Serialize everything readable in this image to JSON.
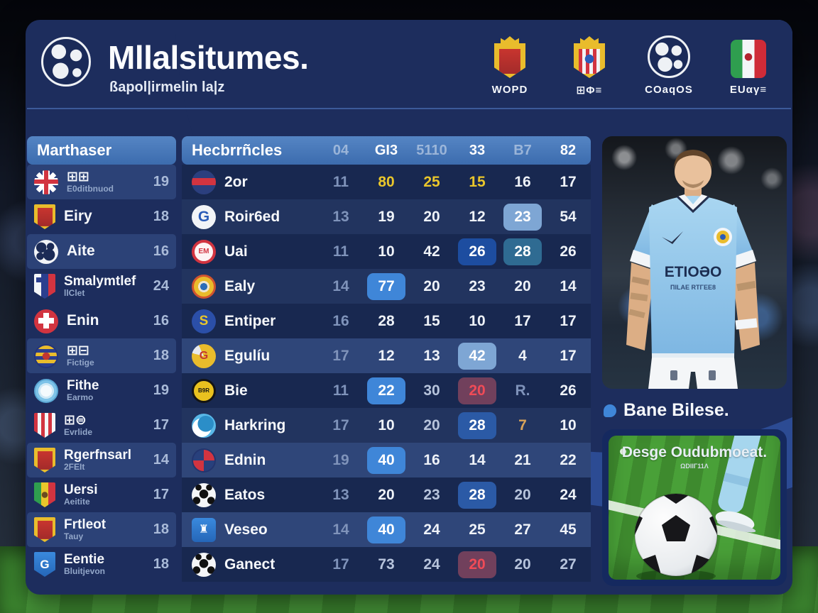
{
  "header": {
    "title": "Mllalsitumes.",
    "subtitle": "ßapol|irmelin la|z",
    "logo_icon": "globe-football-logo",
    "badges": [
      {
        "label": "WOPD",
        "icon": "crest-crown-red"
      },
      {
        "label": "⊞Φ≡",
        "icon": "crest-crown-stripes"
      },
      {
        "label": "COaqOS",
        "icon": "globe"
      },
      {
        "label": "EUαγ≡",
        "icon": "flag-tricolor"
      }
    ]
  },
  "sidebar": {
    "title": "Marthaser",
    "items": [
      {
        "name": "⊞⊞",
        "sub": "E0ditbnuod",
        "value": "19",
        "icon": "uk-flag",
        "hl": true
      },
      {
        "name": "Eiry",
        "sub": "",
        "value": "18",
        "icon": "crest-red-yellow",
        "hl": false
      },
      {
        "name": "Aite",
        "sub": "",
        "value": "16",
        "icon": "globe-ball",
        "hl": true
      },
      {
        "name": "Smalymtlef",
        "sub": "llClet",
        "value": "24",
        "icon": "shield-france",
        "hl": false
      },
      {
        "name": "Enin",
        "sub": "",
        "value": "16",
        "icon": "circle-red-cross",
        "hl": false
      },
      {
        "name": "⊞⊟",
        "sub": "Fictige",
        "value": "18",
        "icon": "circle-yellow-blue",
        "hl": true
      },
      {
        "name": "Fithe",
        "sub": "Earmo",
        "value": "19",
        "icon": "circle-light-blue",
        "hl": false
      },
      {
        "name": "⊞⊜",
        "sub": "Evrlide",
        "value": "17",
        "icon": "shield-red-white",
        "hl": false
      },
      {
        "name": "Rgerfnsarl",
        "sub": "2FEIt",
        "value": "14",
        "icon": "crest-red-yellow",
        "hl": true
      },
      {
        "name": "Uersi",
        "sub": "Aeitite",
        "value": "17",
        "icon": "shield-tricolor",
        "hl": false
      },
      {
        "name": "Frtleot",
        "sub": "Tauy",
        "value": "18",
        "icon": "crest-red-yellow",
        "hl": true
      },
      {
        "name": "Eentie",
        "sub": "Bluitjevon",
        "value": "18",
        "icon": "shield-blue-g",
        "hl": false
      }
    ]
  },
  "table": {
    "title": "Hecbrrñcles",
    "columns": [
      {
        "label": "04",
        "dim": true
      },
      {
        "label": "GI3",
        "dim": false
      },
      {
        "label": "5110",
        "dim": true
      },
      {
        "label": "33",
        "dim": false
      },
      {
        "label": "B7",
        "dim": true
      },
      {
        "label": "82",
        "dim": false
      }
    ],
    "rows": [
      {
        "team": "2or",
        "icon": "roundel-blue-red",
        "row": "dark",
        "values": [
          [
            "11",
            "faint"
          ],
          [
            "80",
            "yellow"
          ],
          [
            "25",
            "yellow"
          ],
          [
            "15",
            "yellow"
          ],
          [
            "16",
            "plain"
          ],
          [
            "17",
            "plain"
          ]
        ]
      },
      {
        "team": "Roir6ed",
        "icon": "circle-g-blue",
        "row": "med",
        "values": [
          [
            "13",
            "faint"
          ],
          [
            "19",
            "plain"
          ],
          [
            "20",
            "plain"
          ],
          [
            "12",
            "plain"
          ],
          [
            "23",
            "hl-light"
          ],
          [
            "54",
            "plain"
          ]
        ]
      },
      {
        "team": "Uai",
        "icon": "circle-red-ring",
        "row": "dark",
        "values": [
          [
            "11",
            "faint"
          ],
          [
            "10",
            "plain"
          ],
          [
            "42",
            "plain"
          ],
          [
            "26",
            "hl-dark"
          ],
          [
            "28",
            "hl-teal"
          ],
          [
            "26",
            "plain"
          ]
        ]
      },
      {
        "team": "Ealy",
        "icon": "roundel-yellow-red",
        "row": "med",
        "values": [
          [
            "14",
            "faint"
          ],
          [
            "77",
            "hl-blue"
          ],
          [
            "20",
            "plain"
          ],
          [
            "23",
            "plain"
          ],
          [
            "20",
            "plain"
          ],
          [
            "14",
            "plain"
          ]
        ]
      },
      {
        "team": "Entiper",
        "icon": "circle-blue-s",
        "row": "dark",
        "values": [
          [
            "16",
            "faint"
          ],
          [
            "28",
            "plain"
          ],
          [
            "15",
            "plain"
          ],
          [
            "10",
            "plain"
          ],
          [
            "17",
            "plain"
          ],
          [
            "17",
            "plain"
          ]
        ]
      },
      {
        "team": "Egulíu",
        "icon": "swirl-yellow-red",
        "row": "hl",
        "values": [
          [
            "17",
            "faint"
          ],
          [
            "12",
            "plain"
          ],
          [
            "13",
            "plain"
          ],
          [
            "42",
            "hl-light"
          ],
          [
            "4",
            "plain"
          ],
          [
            "17",
            "plain"
          ]
        ]
      },
      {
        "team": "Bie",
        "icon": "circle-bvb",
        "row": "dark",
        "values": [
          [
            "11",
            "faint"
          ],
          [
            "22",
            "hl-blue"
          ],
          [
            "30",
            "gray"
          ],
          [
            "20",
            "hl-red"
          ],
          [
            "R.",
            "faint"
          ],
          [
            "26",
            "plain"
          ]
        ]
      },
      {
        "team": "Harkring",
        "icon": "circle-crescent",
        "row": "med",
        "values": [
          [
            "17",
            "faint"
          ],
          [
            "10",
            "plain"
          ],
          [
            "20",
            "gray"
          ],
          [
            "28",
            "hl-med"
          ],
          [
            "7",
            "amber"
          ],
          [
            "10",
            "plain"
          ]
        ]
      },
      {
        "team": "Ednin",
        "icon": "pinwheel",
        "row": "hl",
        "values": [
          [
            "19",
            "faint"
          ],
          [
            "40",
            "hl-blue"
          ],
          [
            "16",
            "plain"
          ],
          [
            "14",
            "plain"
          ],
          [
            "21",
            "plain"
          ],
          [
            "22",
            "plain"
          ]
        ]
      },
      {
        "team": "Eatos",
        "icon": "soccer-ball",
        "row": "dark",
        "values": [
          [
            "13",
            "faint"
          ],
          [
            "20",
            "plain"
          ],
          [
            "23",
            "gray"
          ],
          [
            "28",
            "hl-med"
          ],
          [
            "20",
            "gray"
          ],
          [
            "24",
            "plain"
          ]
        ]
      },
      {
        "team": "Veseo",
        "icon": "shield-castle",
        "row": "hl",
        "values": [
          [
            "14",
            "faint"
          ],
          [
            "40",
            "hl-blue"
          ],
          [
            "24",
            "plain"
          ],
          [
            "25",
            "plain"
          ],
          [
            "27",
            "plain"
          ],
          [
            "45",
            "plain"
          ]
        ]
      },
      {
        "team": "Ganect",
        "icon": "soccer-ball",
        "row": "dark",
        "values": [
          [
            "17",
            "faint"
          ],
          [
            "73",
            "gray"
          ],
          [
            "24",
            "gray"
          ],
          [
            "20",
            "hl-red"
          ],
          [
            "20",
            "gray"
          ],
          [
            "27",
            "gray"
          ]
        ]
      }
    ]
  },
  "right": {
    "caption": "Bane Bilese.",
    "jersey_title": "ETIOƏO",
    "jersey_sub": "ΠILAE RTΓEE8",
    "promo_title": "Desge Oudubmoeat.",
    "promo_sub": "ΩDIIΓ11Λ"
  },
  "colors": {
    "accent": "#3f86d8",
    "yellow": "#e9c62b",
    "red": "#f04b57",
    "panel": "#1d2d5d",
    "grass": "#49a038"
  }
}
